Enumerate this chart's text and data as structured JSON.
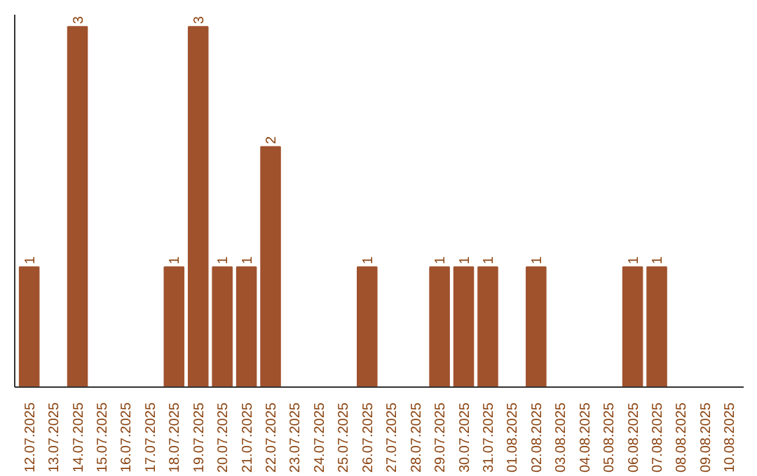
{
  "chart_data": {
    "type": "bar",
    "categories": [
      "12.07.2025",
      "13.07.2025",
      "14.07.2025",
      "15.07.2025",
      "16.07.2025",
      "17.07.2025",
      "18.07.2025",
      "19.07.2025",
      "20.07.2025",
      "21.07.2025",
      "22.07.2025",
      "23.07.2025",
      "24.07.2025",
      "25.07.2025",
      "26.07.2025",
      "27.07.2025",
      "28.07.2025",
      "29.07.2025",
      "30.07.2025",
      "31.07.2025",
      "01.08.2025",
      "02.08.2025",
      "03.08.2025",
      "04.08.2025",
      "05.08.2025",
      "06.08.2025",
      "07.08.2025",
      "08.08.2025",
      "09.08.2025",
      "10.08.2025"
    ],
    "values": [
      1,
      0,
      3,
      0,
      0,
      0,
      1,
      3,
      1,
      1,
      2,
      0,
      0,
      0,
      1,
      0,
      0,
      1,
      1,
      1,
      0,
      1,
      0,
      0,
      0,
      1,
      1,
      0,
      0,
      0
    ],
    "value_labels": [
      "1",
      null,
      "3",
      null,
      null,
      null,
      "1",
      "3",
      "1",
      "1",
      "2",
      null,
      null,
      null,
      "1",
      null,
      null,
      "1",
      "1",
      "1",
      null,
      "1",
      null,
      null,
      null,
      "1",
      "1",
      null,
      null,
      null
    ],
    "color": "#a0522d",
    "ylim": [
      0,
      3.1
    ],
    "tick_labels": "x",
    "grid": false
  }
}
